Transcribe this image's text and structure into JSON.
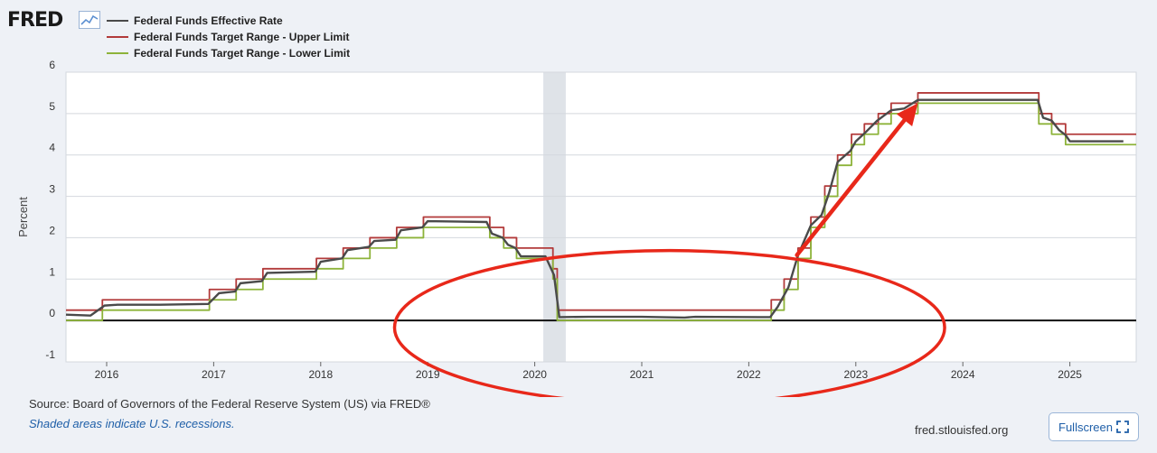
{
  "brand": {
    "logo": "FRED"
  },
  "legend": [
    {
      "label": "Federal Funds Effective Rate",
      "color": "#4a4a4a"
    },
    {
      "label": "Federal Funds Target Range - Upper Limit",
      "color": "#b23a3a"
    },
    {
      "label": "Federal Funds Target Range - Lower Limit",
      "color": "#8db33a"
    }
  ],
  "footer": {
    "source": "Source: Board of Governors of the Federal Reserve System (US) via FRED®",
    "shaded_note": "Shaded areas indicate U.S. recessions.",
    "site": "fred.stlouisfed.org",
    "fullscreen_label": "Fullscreen"
  },
  "chart_data": {
    "type": "line",
    "ylabel": "Percent",
    "xlim": [
      2015.62,
      2025.62
    ],
    "ylim": [
      -1,
      6
    ],
    "y_ticks": [
      -1,
      0,
      1,
      2,
      3,
      4,
      5,
      6
    ],
    "x_ticks": [
      "2016",
      "2017",
      "2018",
      "2019",
      "2020",
      "2021",
      "2022",
      "2023",
      "2024",
      "2025"
    ],
    "grid": true,
    "recession": [
      2020.08,
      2020.29
    ],
    "series": [
      {
        "name": "Federal Funds Target Range - Upper Limit",
        "color": "#b23a3a",
        "step": true,
        "points": [
          [
            2015.62,
            0.25
          ],
          [
            2015.96,
            0.5
          ],
          [
            2016.96,
            0.75
          ],
          [
            2017.21,
            1.0
          ],
          [
            2017.46,
            1.25
          ],
          [
            2017.96,
            1.5
          ],
          [
            2018.21,
            1.75
          ],
          [
            2018.46,
            2.0
          ],
          [
            2018.71,
            2.25
          ],
          [
            2018.96,
            2.5
          ],
          [
            2019.58,
            2.25
          ],
          [
            2019.71,
            2.0
          ],
          [
            2019.83,
            1.75
          ],
          [
            2020.17,
            1.25
          ],
          [
            2020.21,
            0.25
          ],
          [
            2022.21,
            0.5
          ],
          [
            2022.33,
            1.0
          ],
          [
            2022.46,
            1.75
          ],
          [
            2022.58,
            2.5
          ],
          [
            2022.71,
            3.25
          ],
          [
            2022.83,
            4.0
          ],
          [
            2022.96,
            4.5
          ],
          [
            2023.08,
            4.75
          ],
          [
            2023.21,
            5.0
          ],
          [
            2023.33,
            5.25
          ],
          [
            2023.58,
            5.5
          ],
          [
            2024.71,
            5.0
          ],
          [
            2024.83,
            4.75
          ],
          [
            2024.96,
            4.5
          ],
          [
            2025.62,
            4.5
          ]
        ]
      },
      {
        "name": "Federal Funds Target Range - Lower Limit",
        "color": "#8db33a",
        "step": true,
        "points": [
          [
            2015.62,
            0.0
          ],
          [
            2015.96,
            0.25
          ],
          [
            2016.96,
            0.5
          ],
          [
            2017.21,
            0.75
          ],
          [
            2017.46,
            1.0
          ],
          [
            2017.96,
            1.25
          ],
          [
            2018.21,
            1.5
          ],
          [
            2018.46,
            1.75
          ],
          [
            2018.71,
            2.0
          ],
          [
            2018.96,
            2.25
          ],
          [
            2019.58,
            2.0
          ],
          [
            2019.71,
            1.75
          ],
          [
            2019.83,
            1.5
          ],
          [
            2020.17,
            1.0
          ],
          [
            2020.21,
            0.0
          ],
          [
            2022.21,
            0.25
          ],
          [
            2022.33,
            0.75
          ],
          [
            2022.46,
            1.5
          ],
          [
            2022.58,
            2.25
          ],
          [
            2022.71,
            3.0
          ],
          [
            2022.83,
            3.75
          ],
          [
            2022.96,
            4.25
          ],
          [
            2023.08,
            4.5
          ],
          [
            2023.21,
            4.75
          ],
          [
            2023.33,
            5.0
          ],
          [
            2023.58,
            5.25
          ],
          [
            2024.71,
            4.75
          ],
          [
            2024.83,
            4.5
          ],
          [
            2024.96,
            4.25
          ],
          [
            2025.62,
            4.25
          ]
        ]
      },
      {
        "name": "Federal Funds Effective Rate",
        "color": "#4a4a4a",
        "step": false,
        "points": [
          [
            2015.62,
            0.14
          ],
          [
            2015.85,
            0.12
          ],
          [
            2015.98,
            0.36
          ],
          [
            2016.1,
            0.38
          ],
          [
            2016.5,
            0.38
          ],
          [
            2016.95,
            0.4
          ],
          [
            2017.05,
            0.66
          ],
          [
            2017.2,
            0.7
          ],
          [
            2017.25,
            0.9
          ],
          [
            2017.45,
            0.95
          ],
          [
            2017.5,
            1.15
          ],
          [
            2017.95,
            1.18
          ],
          [
            2018.0,
            1.42
          ],
          [
            2018.2,
            1.5
          ],
          [
            2018.25,
            1.7
          ],
          [
            2018.45,
            1.78
          ],
          [
            2018.5,
            1.92
          ],
          [
            2018.7,
            1.95
          ],
          [
            2018.75,
            2.18
          ],
          [
            2018.95,
            2.25
          ],
          [
            2019.0,
            2.4
          ],
          [
            2019.55,
            2.38
          ],
          [
            2019.6,
            2.1
          ],
          [
            2019.7,
            2.0
          ],
          [
            2019.75,
            1.83
          ],
          [
            2019.82,
            1.75
          ],
          [
            2019.87,
            1.55
          ],
          [
            2020.1,
            1.55
          ],
          [
            2020.18,
            1.1
          ],
          [
            2020.23,
            0.08
          ],
          [
            2020.5,
            0.09
          ],
          [
            2021.0,
            0.09
          ],
          [
            2021.4,
            0.07
          ],
          [
            2021.5,
            0.09
          ],
          [
            2022.1,
            0.08
          ],
          [
            2022.2,
            0.08
          ],
          [
            2022.27,
            0.33
          ],
          [
            2022.37,
            0.8
          ],
          [
            2022.46,
            1.58
          ],
          [
            2022.58,
            2.3
          ],
          [
            2022.68,
            2.55
          ],
          [
            2022.75,
            3.08
          ],
          [
            2022.83,
            3.83
          ],
          [
            2022.95,
            4.1
          ],
          [
            2023.0,
            4.33
          ],
          [
            2023.1,
            4.57
          ],
          [
            2023.2,
            4.83
          ],
          [
            2023.33,
            5.08
          ],
          [
            2023.45,
            5.12
          ],
          [
            2023.58,
            5.33
          ],
          [
            2024.0,
            5.33
          ],
          [
            2024.7,
            5.33
          ],
          [
            2024.75,
            4.9
          ],
          [
            2024.83,
            4.83
          ],
          [
            2024.9,
            4.6
          ],
          [
            2024.96,
            4.48
          ],
          [
            2025.0,
            4.33
          ],
          [
            2025.5,
            4.33
          ]
        ]
      }
    ],
    "annotations": [
      {
        "type": "ellipse",
        "color": "#e8281a",
        "cx": 2021.26,
        "cy": -0.17,
        "rx": 2.57,
        "ry": 1.86
      },
      {
        "type": "arrow",
        "color": "#e8281a",
        "from": [
          2022.45,
          1.58
        ],
        "to": [
          2023.58,
          5.25
        ]
      }
    ]
  }
}
